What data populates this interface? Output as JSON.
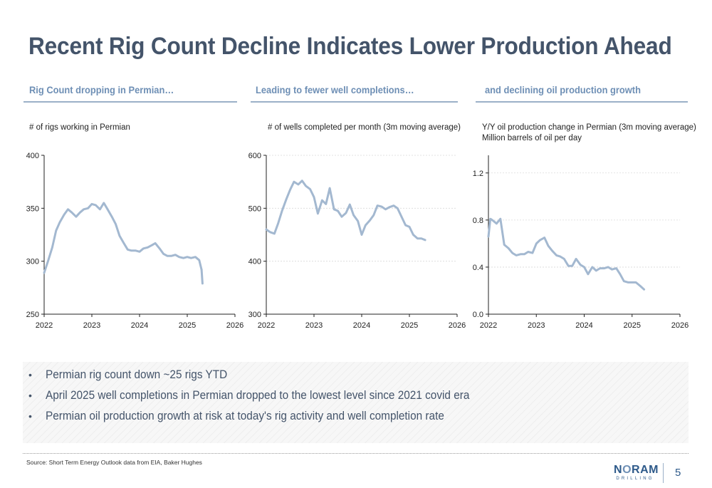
{
  "slide": {
    "title": "Recent Rig Count Decline Indicates Lower Production Ahead",
    "headers": [
      "Rig Count dropping in Permian…",
      "Leading to fewer well completions…",
      "and declining oil production growth"
    ],
    "bullets": [
      "Permian rig count down ~25 rigs YTD",
      "April 2025 well completions in Permian dropped to the lowest level since 2021 covid era",
      "Permian oil production growth at risk at today's rig activity and well completion rate"
    ],
    "source": "Source: Short Term Energy Outlook data from EIA, Baker Hughes",
    "logo": {
      "main_pre": "N",
      "main_o": "O",
      "main_post": "RAM",
      "sub": "DRILLING"
    },
    "page_number": "5"
  },
  "style": {
    "line_color": "#a3b8d0",
    "title_color": "#44546a",
    "accent_color": "#6e8fb5"
  },
  "chart_data": [
    {
      "type": "line",
      "subtitle": "# of rigs working in Permian",
      "xlim": [
        2022,
        2026
      ],
      "ylim": [
        250,
        400
      ],
      "xticks": [
        2022,
        2023,
        2024,
        2025,
        2026
      ],
      "yticks": [
        250,
        300,
        350,
        400
      ],
      "ytick_decimals": 0,
      "grid": false,
      "series": [
        {
          "x": [
            2022.0,
            2022.08,
            2022.17,
            2022.25,
            2022.33,
            2022.42,
            2022.5,
            2022.58,
            2022.67,
            2022.75,
            2022.83,
            2022.92,
            2023.0,
            2023.08,
            2023.17,
            2023.25,
            2023.33,
            2023.42,
            2023.5,
            2023.58,
            2023.67,
            2023.75,
            2023.83,
            2023.92,
            2024.0,
            2024.08,
            2024.17,
            2024.25,
            2024.33,
            2024.42,
            2024.5,
            2024.58,
            2024.67,
            2024.75,
            2024.83,
            2024.92,
            2025.0,
            2025.08,
            2025.17,
            2025.25,
            2025.3
          ],
          "y": [
            289,
            300,
            313,
            329,
            337,
            344,
            349,
            346,
            342,
            346,
            349,
            350,
            354,
            353,
            349,
            355,
            349,
            342,
            335,
            324,
            317,
            311,
            310,
            310,
            309,
            312,
            313,
            315,
            317,
            312,
            307,
            305,
            305,
            306,
            304,
            303,
            304,
            303,
            304,
            301,
            292
          ]
        },
        {
          "x": [
            2025.3,
            2025.32
          ],
          "y": [
            292,
            279
          ]
        }
      ]
    },
    {
      "type": "line",
      "subtitle": "# of wells completed per month (3m moving average)",
      "xlim": [
        2022,
        2026
      ],
      "ylim": [
        300,
        600
      ],
      "xticks": [
        2022,
        2023,
        2024,
        2025,
        2026
      ],
      "yticks": [
        300,
        400,
        500,
        600
      ],
      "ytick_decimals": 0,
      "grid": true,
      "series": [
        {
          "x": [
            2022.0,
            2022.08,
            2022.17,
            2022.25,
            2022.33,
            2022.42,
            2022.5,
            2022.58,
            2022.67,
            2022.75,
            2022.83,
            2022.92,
            2023.0,
            2023.08,
            2023.17,
            2023.25,
            2023.33,
            2023.42,
            2023.5,
            2023.58,
            2023.67,
            2023.75,
            2023.83,
            2023.92,
            2024.0,
            2024.08,
            2024.17,
            2024.25,
            2024.33,
            2024.42,
            2024.5,
            2024.58,
            2024.67,
            2024.75,
            2024.83,
            2024.92,
            2025.0,
            2025.08,
            2025.17,
            2025.25,
            2025.33
          ],
          "y": [
            460,
            455,
            452,
            472,
            495,
            517,
            535,
            550,
            545,
            552,
            542,
            536,
            521,
            490,
            515,
            508,
            538,
            498,
            495,
            484,
            491,
            507,
            487,
            476,
            450,
            468,
            477,
            487,
            505,
            503,
            498,
            502,
            505,
            500,
            485,
            468,
            465,
            450,
            443,
            443,
            440
          ]
        }
      ]
    },
    {
      "type": "line",
      "subtitle": [
        "Y/Y oil production change in Permian (3m moving average)",
        "Million barrels of oil per day"
      ],
      "xlim": [
        2022,
        2026
      ],
      "ylim": [
        0,
        1.35
      ],
      "xticks": [
        2022,
        2023,
        2024,
        2025,
        2026
      ],
      "yticks": [
        0.0,
        0.4,
        0.8,
        1.2
      ],
      "ytick_decimals": 1,
      "grid": true,
      "series": [
        {
          "x": [
            2022.0,
            2022.04,
            2022.08,
            2022.17,
            2022.25,
            2022.33,
            2022.42,
            2022.5,
            2022.58,
            2022.67,
            2022.75,
            2022.83,
            2022.92,
            2023.0,
            2023.08,
            2023.17,
            2023.25,
            2023.33,
            2023.42,
            2023.5,
            2023.58,
            2023.67,
            2023.75,
            2023.83,
            2023.92,
            2024.0,
            2024.08,
            2024.17,
            2024.25,
            2024.33,
            2024.42,
            2024.5,
            2024.58,
            2024.67,
            2024.75,
            2024.83,
            2024.92,
            2025.0,
            2025.08,
            2025.17,
            2025.25
          ],
          "y": [
            0.66,
            0.81,
            0.8,
            0.77,
            0.81,
            0.59,
            0.56,
            0.52,
            0.5,
            0.51,
            0.51,
            0.53,
            0.52,
            0.6,
            0.63,
            0.65,
            0.58,
            0.54,
            0.5,
            0.49,
            0.47,
            0.41,
            0.41,
            0.47,
            0.42,
            0.4,
            0.34,
            0.4,
            0.37,
            0.39,
            0.39,
            0.4,
            0.38,
            0.39,
            0.34,
            0.28,
            0.27,
            0.27,
            0.27,
            0.24,
            0.21
          ]
        }
      ]
    }
  ]
}
